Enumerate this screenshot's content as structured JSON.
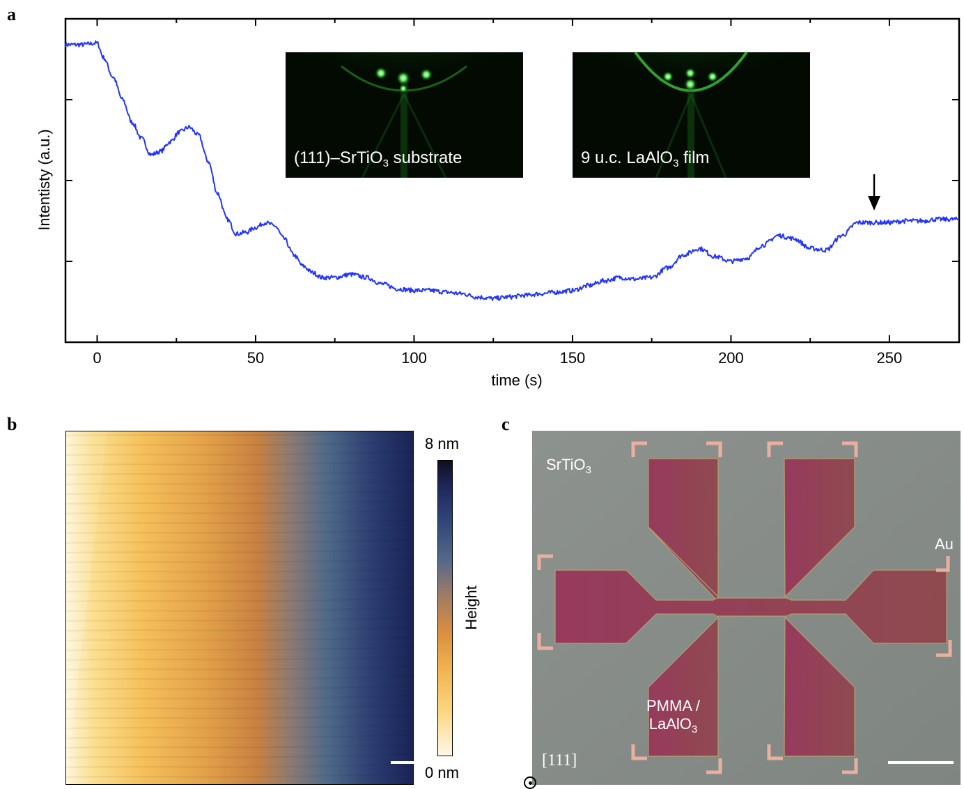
{
  "panels": {
    "a": "a",
    "b": "b",
    "c": "c"
  },
  "chart_data": [
    {
      "type": "line",
      "panel": "a",
      "xlabel": "time (s)",
      "ylabel": "Intentisty (a.u.)",
      "xlim": [
        -10,
        272
      ],
      "ylim": [
        0,
        1
      ],
      "xticks": [
        0,
        50,
        100,
        150,
        200,
        250
      ],
      "x_minor_ticks": [
        25,
        75,
        125,
        175,
        225
      ],
      "y_tick_labels": "none",
      "grid": false,
      "line_color": "#2233ff",
      "series": [
        {
          "x": [
            -10,
            -5,
            0,
            2,
            5,
            8,
            11,
            14,
            17,
            20,
            23,
            26,
            29,
            32,
            35,
            38,
            41,
            44,
            47,
            50,
            53,
            56,
            59,
            62,
            65,
            68,
            71,
            75,
            80,
            85,
            90,
            95,
            100,
            105,
            110,
            115,
            120,
            125,
            130,
            135,
            140,
            145,
            150,
            155,
            160,
            165,
            170,
            175,
            180,
            185,
            190,
            195,
            200,
            205,
            210,
            215,
            220,
            225,
            230,
            235,
            240,
            245,
            250,
            255,
            260,
            265,
            272
          ],
          "values": [
            0.92,
            0.92,
            0.925,
            0.88,
            0.82,
            0.75,
            0.68,
            0.63,
            0.58,
            0.59,
            0.62,
            0.65,
            0.665,
            0.64,
            0.56,
            0.46,
            0.38,
            0.335,
            0.34,
            0.355,
            0.37,
            0.36,
            0.32,
            0.27,
            0.235,
            0.215,
            0.2,
            0.2,
            0.21,
            0.2,
            0.18,
            0.165,
            0.16,
            0.16,
            0.155,
            0.15,
            0.14,
            0.135,
            0.14,
            0.145,
            0.15,
            0.155,
            0.16,
            0.175,
            0.19,
            0.2,
            0.195,
            0.2,
            0.23,
            0.27,
            0.29,
            0.265,
            0.25,
            0.26,
            0.3,
            0.33,
            0.32,
            0.29,
            0.285,
            0.33,
            0.37,
            0.37,
            0.37,
            0.375,
            0.375,
            0.38,
            0.38
          ]
        }
      ],
      "annotation": "arrow at t = 245 s",
      "insets": [
        {
          "label_pre": "(111)–SrTiO",
          "label_sub": "3",
          "label_post": " substrate"
        },
        {
          "label_pre": "9 u.c. LaAlO",
          "label_sub": "3",
          "label_post": " film"
        }
      ]
    },
    {
      "type": "heatmap",
      "panel": "b",
      "colorbar_label": "Height",
      "colorbar_max": "8 nm",
      "colorbar_min": "0 nm",
      "range_nm": [
        0,
        8
      ]
    }
  ],
  "panel_c": {
    "label_substrate_pre": "SrTiO",
    "label_substrate_sub": "3",
    "label_au": "Au",
    "label_film_line1": "PMMA /",
    "label_film_line2_pre": "LaAlO",
    "label_film_line2_sub": "3",
    "label_direction": "[111]"
  },
  "colors": {
    "trace": "#2233ff",
    "rheed_green": "#3cd03c",
    "film": "#8e3a58",
    "substrate": "#868c88",
    "gold": "#e8a89a"
  }
}
